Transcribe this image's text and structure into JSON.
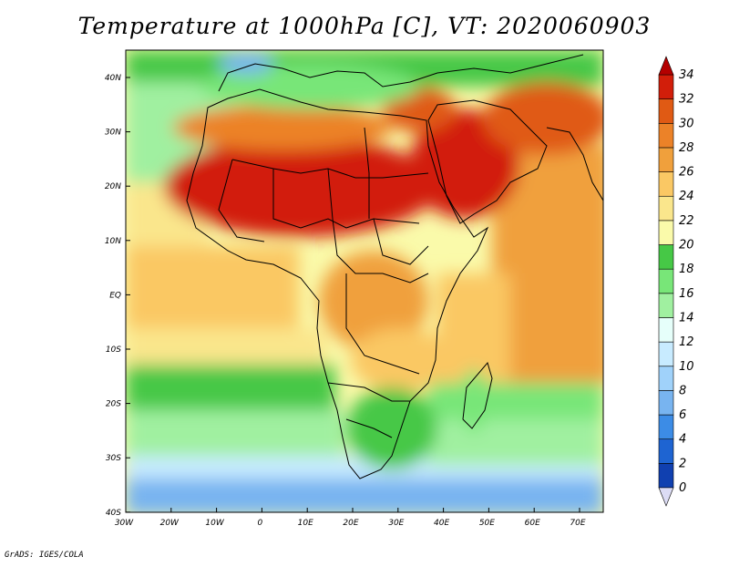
{
  "title": "Temperature at 1000hPa [C], VT: 2020060903",
  "footer": "GrADS: IGES/COLA",
  "map": {
    "lat_labels": [
      "40N",
      "30N",
      "20N",
      "10N",
      "EQ",
      "10S",
      "20S",
      "30S",
      "40S"
    ],
    "lon_labels": [
      "30W",
      "20W",
      "10W",
      "0",
      "10E",
      "20E",
      "30E",
      "40E",
      "50E",
      "60E",
      "70E"
    ],
    "lon_range": [
      -30,
      75
    ],
    "lat_range": [
      -40,
      45
    ]
  },
  "colorbar": {
    "labels": [
      "34",
      "32",
      "30",
      "28",
      "26",
      "24",
      "22",
      "20",
      "18",
      "16",
      "14",
      "12",
      "10",
      "8",
      "6",
      "4",
      "2",
      "0"
    ],
    "colors": [
      "#0a1a78",
      "#1040b0",
      "#1e64d2",
      "#3c8ce6",
      "#78b4f0",
      "#a0d2fa",
      "#c8ebff",
      "#e6fffa",
      "#a0f0a0",
      "#78e678",
      "#46c846",
      "#fafaaa",
      "#fae68c",
      "#fac864",
      "#f0a03c",
      "#ec8228",
      "#e05a14",
      "#d21e0a",
      "#b40000"
    ]
  },
  "legend_units": "C"
}
